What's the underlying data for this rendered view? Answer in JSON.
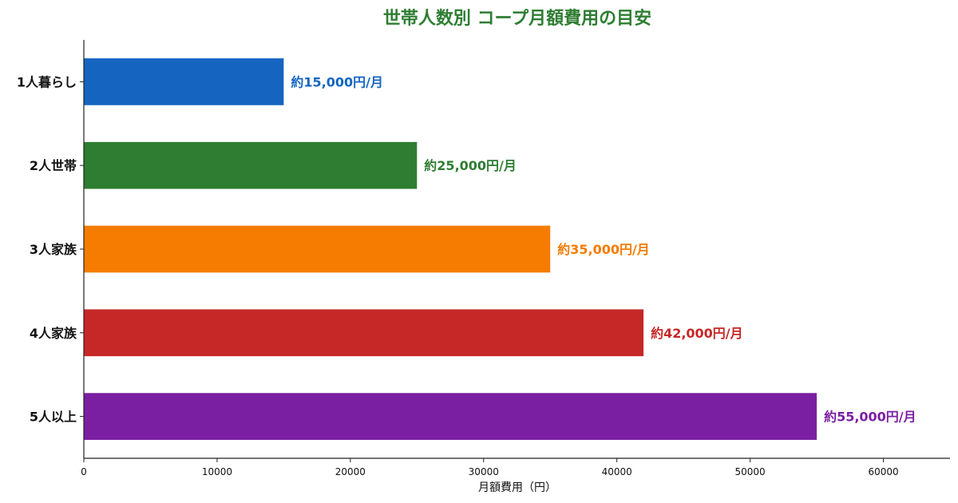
{
  "chart_data": {
    "type": "bar",
    "orientation": "horizontal",
    "title": "世帯人数別 コープ月額費用の目安",
    "title_color": "#2e7d32",
    "categories": [
      "1人暮らし",
      "2人世帯",
      "3人家族",
      "4人家族",
      "5人以上"
    ],
    "values": [
      15000,
      25000,
      35000,
      42000,
      55000
    ],
    "data_labels": [
      "約15,000円/月",
      "約25,000円/月",
      "約35,000円/月",
      "約42,000円/月",
      "約55,000円/月"
    ],
    "colors": [
      "#1565c0",
      "#2e7d32",
      "#f57c00",
      "#c62828",
      "#7b1fa2"
    ],
    "xlabel": "月額費用（円）",
    "ylabel": "",
    "xlim": [
      0,
      65000
    ],
    "xticks": [
      0,
      10000,
      20000,
      30000,
      40000,
      50000,
      60000
    ],
    "grid": false,
    "legend": "none"
  }
}
